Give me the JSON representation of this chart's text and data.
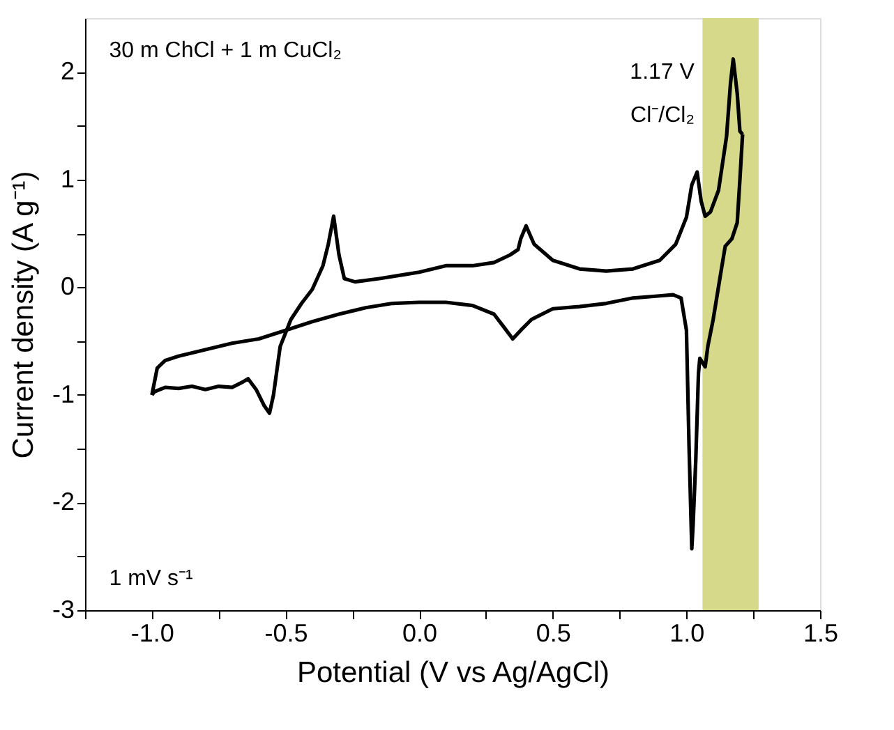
{
  "chart_data": {
    "type": "line",
    "xlabel": "Potential (V vs Ag/AgCl)",
    "ylabel": "Current density (A g⁻¹)",
    "annotations": [
      "30 m ChCl + 1 m CuCl₂",
      "1.17 V",
      "Cl⁻/Cl₂",
      "1 mV s⁻¹"
    ],
    "series": [
      {
        "color": "#000000",
        "x": [
          -1.0,
          -0.99,
          -0.95,
          -0.9,
          -0.85,
          -0.8,
          -0.75,
          -0.7,
          -0.66,
          -0.64,
          -0.61,
          -0.58,
          -0.56,
          -0.545,
          -0.52,
          -0.48,
          -0.44,
          -0.4,
          -0.36,
          -0.34,
          -0.32,
          -0.3,
          -0.28,
          -0.24,
          -0.15,
          -0.05,
          0.0,
          0.1,
          0.2,
          0.28,
          0.34,
          0.37,
          0.38,
          0.4,
          0.43,
          0.5,
          0.6,
          0.7,
          0.8,
          0.9,
          0.96,
          1.0,
          1.02,
          1.04,
          1.055,
          1.07,
          1.09,
          1.12,
          1.15,
          1.165,
          1.175,
          1.19,
          1.2,
          1.21
        ],
        "values": [
          -1.0,
          -0.97,
          -0.93,
          -0.94,
          -0.92,
          -0.95,
          -0.92,
          -0.93,
          -0.88,
          -0.85,
          -0.95,
          -1.1,
          -1.17,
          -1.0,
          -0.55,
          -0.3,
          -0.15,
          -0.02,
          0.2,
          0.4,
          0.66,
          0.3,
          0.08,
          0.05,
          0.08,
          0.12,
          0.14,
          0.2,
          0.2,
          0.23,
          0.3,
          0.35,
          0.45,
          0.57,
          0.4,
          0.25,
          0.17,
          0.15,
          0.17,
          0.25,
          0.4,
          0.65,
          0.95,
          1.07,
          0.8,
          0.66,
          0.7,
          0.9,
          1.4,
          1.9,
          2.12,
          1.8,
          1.45,
          1.42
        ]
      },
      {
        "color": "#000000",
        "x": [
          1.21,
          1.2,
          1.19,
          1.17,
          1.145,
          1.125,
          1.1,
          1.08,
          1.07,
          1.05,
          1.045,
          1.035,
          1.025,
          1.02,
          1.01,
          1.0,
          0.98,
          0.95,
          0.9,
          0.8,
          0.7,
          0.6,
          0.5,
          0.42,
          0.38,
          0.35,
          0.32,
          0.28,
          0.2,
          0.1,
          0.0,
          -0.1,
          -0.2,
          -0.3,
          -0.4,
          -0.5,
          -0.6,
          -0.7,
          -0.8,
          -0.9,
          -0.95,
          -0.98,
          -1.0
        ],
        "values": [
          1.42,
          1.0,
          0.6,
          0.45,
          0.38,
          0.08,
          -0.3,
          -0.55,
          -0.74,
          -0.66,
          -0.8,
          -1.6,
          -2.2,
          -2.43,
          -1.5,
          -0.4,
          -0.1,
          -0.07,
          -0.08,
          -0.1,
          -0.15,
          -0.18,
          -0.2,
          -0.3,
          -0.4,
          -0.48,
          -0.38,
          -0.25,
          -0.17,
          -0.14,
          -0.14,
          -0.15,
          -0.19,
          -0.25,
          -0.32,
          -0.4,
          -0.48,
          -0.52,
          -0.58,
          -0.64,
          -0.68,
          -0.75,
          -1.0
        ]
      }
    ],
    "xlim": [
      -1.25,
      1.5
    ],
    "xticks": [
      {
        "value": -1.25,
        "label": null
      },
      {
        "value": -1.0,
        "label": "-1.0"
      },
      {
        "value": -0.75,
        "label": null
      },
      {
        "value": -0.5,
        "label": "-0.5"
      },
      {
        "value": -0.25,
        "label": null
      },
      {
        "value": 0.0,
        "label": "0.0"
      },
      {
        "value": 0.25,
        "label": null
      },
      {
        "value": 0.5,
        "label": "0.5"
      },
      {
        "value": 0.75,
        "label": null
      },
      {
        "value": 1.0,
        "label": "1.0"
      },
      {
        "value": 1.25,
        "label": null
      },
      {
        "value": 1.5,
        "label": "1.5"
      }
    ],
    "ylim": [
      -3,
      2.5
    ],
    "yticks": [
      -3,
      {
        "value": -2.5,
        "label": null
      },
      -2,
      {
        "value": -1.5,
        "label": null
      },
      -1,
      {
        "value": -0.5,
        "label": null
      },
      0,
      {
        "value": 0.5,
        "label": null
      },
      1,
      {
        "value": 1.5,
        "label": null
      },
      2
    ],
    "bands": [
      {
        "axis": "x",
        "from": 1.06,
        "to": 1.27,
        "color": "#d6d98a"
      }
    ],
    "grid": false,
    "marker": "none",
    "line_style": "solid"
  }
}
